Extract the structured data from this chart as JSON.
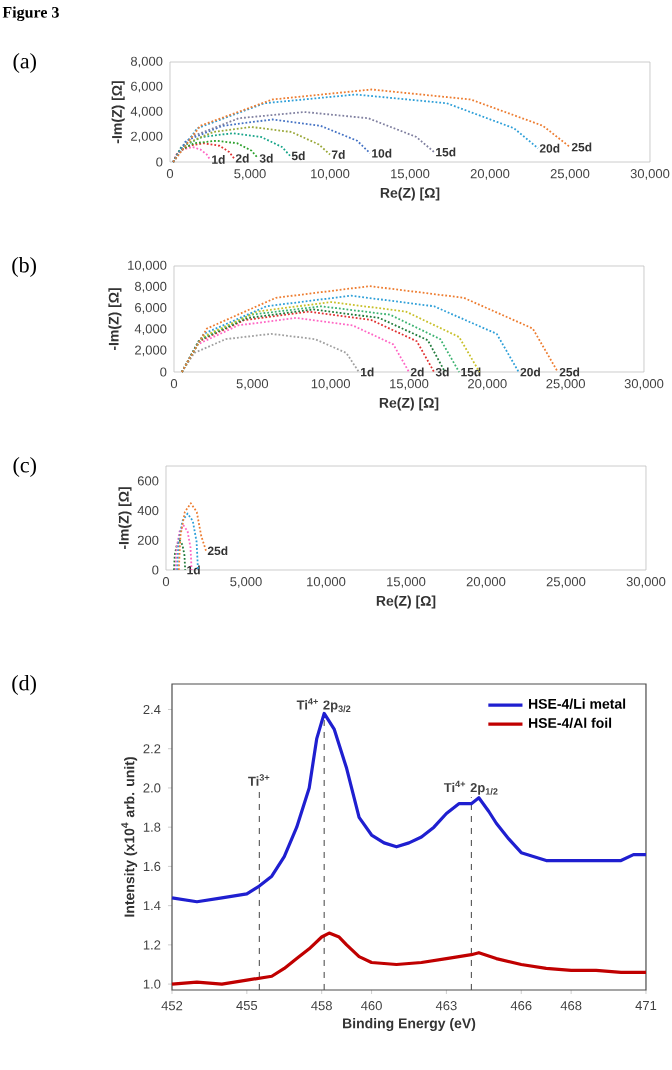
{
  "chart_data": [
    {
      "type": "line",
      "title": "(a)",
      "annotations": [
        "Figure 3"
      ],
      "xlabel": "Re(Z) [Ω]",
      "ylabel": "-Im(Z) [Ω]",
      "xlim": [
        0,
        30000
      ],
      "ylim": [
        0,
        8000
      ],
      "xticks": [
        0,
        {
          "value": 5000,
          "label": "5,000"
        },
        {
          "value": 10000,
          "label": "10,000"
        },
        {
          "value": 15000,
          "label": "15,000"
        },
        {
          "value": 20000,
          "label": "20,000"
        },
        {
          "value": 25000,
          "label": "25,000"
        },
        {
          "value": 30000,
          "label": "30,000"
        }
      ],
      "yticks": [
        0,
        {
          "value": 2000,
          "label": "2,000"
        },
        {
          "value": 4000,
          "label": "4,000"
        },
        {
          "value": 6000,
          "label": "6,000"
        },
        {
          "value": 8000,
          "label": "8,000"
        }
      ],
      "line_style": "dotted",
      "marker": "none",
      "series": [
        {
          "name": "1d",
          "color": "#ff66c4",
          "x": [
            200,
            400,
            800,
            1400,
            1900,
            2300,
            2500
          ],
          "values": [
            0,
            600,
            1000,
            1200,
            1000,
            600,
            200
          ]
        },
        {
          "name": "2d",
          "color": "#e03030",
          "x": [
            200,
            500,
            1200,
            2100,
            3100,
            3700,
            4000
          ],
          "values": [
            0,
            800,
            1300,
            1500,
            1300,
            800,
            300
          ]
        },
        {
          "name": "3d",
          "color": "#2ca02c",
          "x": [
            200,
            600,
            1500,
            2900,
            4200,
            5100,
            5500
          ],
          "values": [
            0,
            900,
            1500,
            1700,
            1500,
            900,
            300
          ]
        },
        {
          "name": "5d",
          "color": "#17a589",
          "x": [
            200,
            700,
            2000,
            3900,
            5700,
            7000,
            7500
          ],
          "values": [
            0,
            1200,
            2000,
            2300,
            2000,
            1200,
            500
          ]
        },
        {
          "name": "7d",
          "color": "#9aa83a",
          "x": [
            200,
            900,
            2700,
            5100,
            7600,
            9300,
            10000
          ],
          "values": [
            0,
            1400,
            2400,
            2800,
            2400,
            1400,
            600
          ]
        },
        {
          "name": "10d",
          "color": "#4472c4",
          "x": [
            200,
            1000,
            3300,
            6400,
            9400,
            11700,
            12500
          ],
          "values": [
            0,
            1700,
            2900,
            3400,
            2900,
            1700,
            700
          ]
        },
        {
          "name": "15d",
          "color": "#8080a0",
          "x": [
            200,
            1300,
            4300,
            8400,
            12400,
            15400,
            16500
          ],
          "values": [
            0,
            2000,
            3500,
            4000,
            3500,
            2000,
            800
          ]
        },
        {
          "name": "20d",
          "color": "#2e9fd8",
          "x": [
            200,
            1700,
            5900,
            11600,
            17300,
            21500,
            23000
          ],
          "values": [
            0,
            2700,
            4700,
            5400,
            4700,
            2700,
            1100
          ]
        },
        {
          "name": "25d",
          "color": "#ed7d31",
          "x": [
            200,
            1900,
            6400,
            12600,
            18800,
            23300,
            25000
          ],
          "values": [
            0,
            2900,
            5000,
            5800,
            5000,
            2900,
            1200
          ]
        }
      ]
    },
    {
      "type": "line",
      "title": "(b)",
      "xlabel": "Re(Z) [Ω]",
      "ylabel": "-Im(Z) [Ω]",
      "xlim": [
        0,
        30000
      ],
      "ylim": [
        0,
        10000
      ],
      "xticks": [
        0,
        {
          "value": 5000,
          "label": "5,000"
        },
        {
          "value": 10000,
          "label": "10,000"
        },
        {
          "value": 15000,
          "label": "15,000"
        },
        {
          "value": 20000,
          "label": "20,000"
        },
        {
          "value": 25000,
          "label": "25,000"
        },
        {
          "value": 30000,
          "label": "30,000"
        }
      ],
      "yticks": [
        0,
        {
          "value": 2000,
          "label": "2,000"
        },
        {
          "value": 4000,
          "label": "4,000"
        },
        {
          "value": 6000,
          "label": "6,000"
        },
        {
          "value": 8000,
          "label": "8,000"
        },
        {
          "value": 10000,
          "label": "10,000"
        }
      ],
      "line_style": "dotted",
      "marker": "none",
      "series": [
        {
          "name": "1d",
          "color": "#a0a0a0",
          "x": [
            500,
            1300,
            3300,
            6200,
            9000,
            11000,
            11800
          ],
          "values": [
            0,
            1800,
            3100,
            3600,
            3100,
            1800,
            0
          ]
        },
        {
          "name": "2d",
          "color": "#ff66c4",
          "x": [
            500,
            1500,
            4100,
            7800,
            11400,
            14000,
            15000
          ],
          "values": [
            0,
            2600,
            4400,
            5100,
            4400,
            2600,
            0
          ]
        },
        {
          "name": "3d",
          "color": "#e03030",
          "x": [
            500,
            1600,
            4500,
            8600,
            12600,
            15500,
            16600
          ],
          "values": [
            0,
            2900,
            4900,
            5700,
            4900,
            2900,
            0
          ]
        },
        {
          "color": "#1f7a3a",
          "x": [
            500,
            1600,
            4700,
            8900,
            13100,
            16200,
            17300
          ],
          "values": [
            0,
            3000,
            5100,
            5900,
            5100,
            3000,
            0
          ]
        },
        {
          "name": "15d",
          "color": "#3cb371",
          "x": [
            500,
            1700,
            4900,
            9400,
            13800,
            17000,
            18200
          ],
          "values": [
            0,
            3100,
            5400,
            6200,
            5400,
            3100,
            0
          ]
        },
        {
          "color": "#c8c02a",
          "x": [
            500,
            1800,
            5300,
            10000,
            14800,
            18200,
            19500
          ],
          "values": [
            0,
            3300,
            5700,
            6600,
            5700,
            3300,
            0
          ]
        },
        {
          "name": "20d",
          "color": "#2e9fd8",
          "x": [
            500,
            1900,
            5900,
            11300,
            16600,
            20600,
            22000
          ],
          "values": [
            0,
            3600,
            6200,
            7200,
            6200,
            3600,
            0
          ]
        },
        {
          "name": "25d",
          "color": "#ed7d31",
          "x": [
            500,
            2100,
            6500,
            12500,
            18500,
            22900,
            24500
          ],
          "values": [
            0,
            4100,
            7000,
            8100,
            7000,
            4100,
            0
          ]
        }
      ]
    },
    {
      "type": "line",
      "title": "(c)",
      "xlabel": "Re(Z) [Ω]",
      "ylabel": "-Im(Z) [Ω]",
      "xlim": [
        0,
        30000
      ],
      "ylim": [
        0,
        700
      ],
      "xticks": [
        0,
        {
          "value": 5000,
          "label": "5,000"
        },
        {
          "value": 10000,
          "label": "10,000"
        },
        {
          "value": 15000,
          "label": "15,000"
        },
        {
          "value": 20000,
          "label": "20,000"
        },
        {
          "value": 25000,
          "label": "25,000"
        },
        {
          "value": 30000,
          "label": "30,000"
        }
      ],
      "yticks": [
        0,
        200,
        400,
        600
      ],
      "line_style": "dotted",
      "marker": "none",
      "series": [
        {
          "name": "1d",
          "color": "#1f7a3a",
          "x": [
            500,
            547,
            675,
            850,
            1025,
            1153,
            1200
          ],
          "values": [
            0,
            100,
            170,
            200,
            170,
            100,
            0
          ]
        },
        {
          "color": "#ff66c4",
          "x": [
            600,
            667,
            850,
            1100,
            1350,
            1533,
            1600
          ],
          "values": [
            0,
            150,
            260,
            300,
            260,
            150,
            0
          ]
        },
        {
          "color": "#2e9fd8",
          "x": [
            700,
            787,
            1025,
            1350,
            1675,
            1912,
            2000
          ],
          "values": [
            0,
            190,
            330,
            380,
            330,
            190,
            0
          ]
        },
        {
          "name": "25d",
          "color": "#ed7d31",
          "x": [
            800,
            901,
            1175,
            1550,
            1925,
            2200,
            2500
          ],
          "values": [
            0,
            230,
            390,
            450,
            390,
            230,
            130
          ]
        }
      ]
    },
    {
      "type": "line",
      "title": "(d)",
      "xlabel": "Binding Energy (eV)",
      "ylabel": "Intensity  (x10$^{4}$ arb. unit)",
      "xlim": [
        452,
        471
      ],
      "ylim": [
        0.97,
        2.53
      ],
      "xticks": [
        452,
        455,
        458,
        460,
        463,
        466,
        468,
        471
      ],
      "yticks": [
        {
          "value": 1,
          "label": "1.0"
        },
        1.2,
        1.4,
        1.6,
        1.8,
        {
          "value": 2,
          "label": "2.0"
        },
        2.2,
        2.4
      ],
      "line_style": "solid",
      "marker": "none",
      "legend": "top right",
      "ref_lines": [
        {
          "axis": "x",
          "value": 455.5,
          "label": "Ti$^{3+}$",
          "line_style": "dashed"
        },
        {
          "axis": "x",
          "value": 458.1,
          "label": "Ti$^{4+}$ 2p$_{3/2}$",
          "line_style": "dashed"
        },
        {
          "axis": "x",
          "value": 464.0,
          "label": "Ti$^{4+}$ 2p$_{1/2}$",
          "line_style": "dashed"
        }
      ],
      "series": [
        {
          "name": "HSE-4/Li metal",
          "color": "#1f1fd0",
          "x": [
            452,
            453,
            454,
            455,
            455.5,
            456,
            456.5,
            457,
            457.5,
            457.8,
            458.1,
            458.5,
            459,
            459.5,
            460,
            460.5,
            461,
            461.5,
            462,
            462.5,
            463,
            463.5,
            464,
            464.3,
            464.7,
            465,
            465.5,
            466,
            467,
            468,
            469,
            470,
            470.5,
            471
          ],
          "values": [
            1.44,
            1.42,
            1.44,
            1.46,
            1.5,
            1.55,
            1.65,
            1.8,
            2.0,
            2.25,
            2.38,
            2.3,
            2.1,
            1.85,
            1.76,
            1.72,
            1.7,
            1.72,
            1.75,
            1.8,
            1.87,
            1.92,
            1.92,
            1.95,
            1.88,
            1.82,
            1.74,
            1.67,
            1.63,
            1.63,
            1.63,
            1.63,
            1.66,
            1.66
          ]
        },
        {
          "name": "HSE-4/Al  foil",
          "color": "#c00000",
          "x": [
            452,
            453,
            454,
            455,
            456,
            456.5,
            457,
            457.5,
            458,
            458.3,
            458.7,
            459,
            459.5,
            460,
            461,
            462,
            463,
            464,
            464.3,
            465,
            466,
            467,
            468,
            469,
            470,
            471
          ],
          "values": [
            1.0,
            1.01,
            1.0,
            1.02,
            1.04,
            1.08,
            1.13,
            1.18,
            1.24,
            1.26,
            1.24,
            1.2,
            1.14,
            1.11,
            1.1,
            1.11,
            1.13,
            1.15,
            1.16,
            1.13,
            1.1,
            1.08,
            1.07,
            1.07,
            1.06,
            1.06
          ]
        }
      ]
    }
  ]
}
